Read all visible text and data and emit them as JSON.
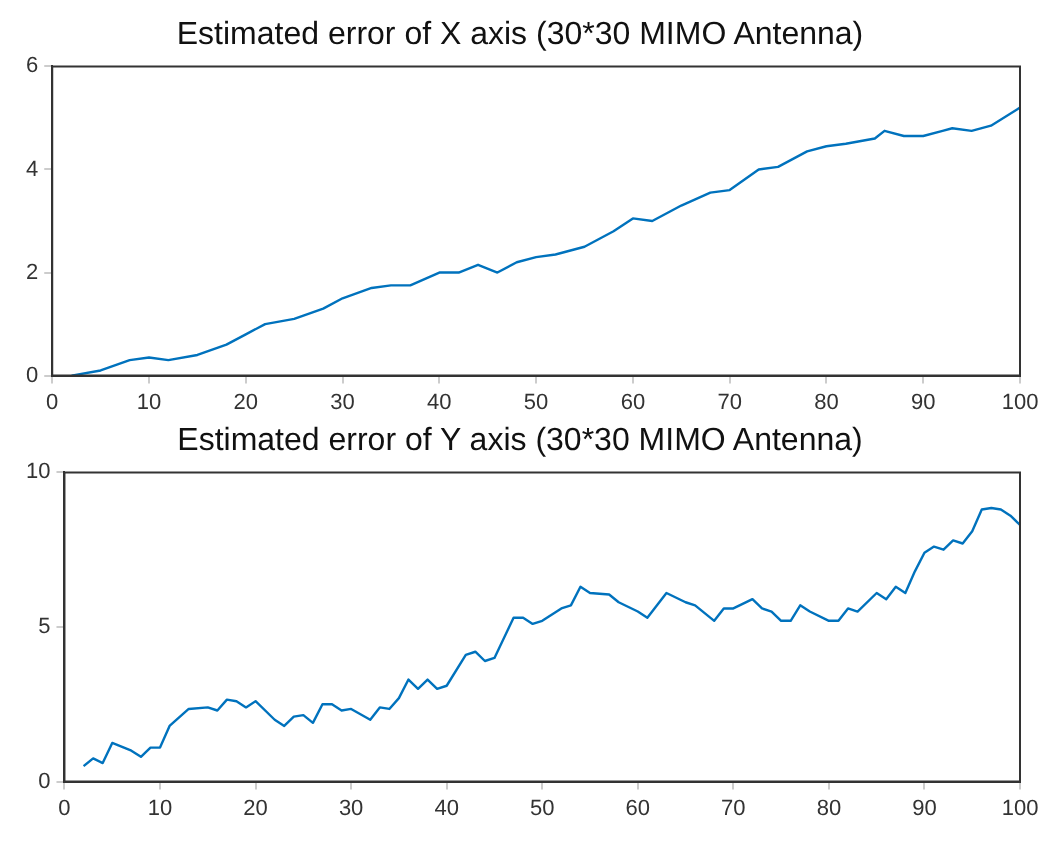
{
  "chart_data": [
    {
      "type": "line",
      "title": "Estimated error of X axis (30*30 MIMO Antenna)",
      "xlim": [
        0,
        100
      ],
      "xticks": [
        0,
        10,
        20,
        30,
        40,
        50,
        60,
        70,
        80,
        90,
        100
      ],
      "ylim": [
        0,
        6
      ],
      "yticks": [
        0,
        2,
        4,
        6
      ],
      "grid": false,
      "legend": false,
      "marker": "none",
      "line_style": "solid",
      "series": [
        {
          "color": "#0072bd",
          "x": [
            2,
            5,
            8,
            10,
            12,
            15,
            18,
            20,
            22,
            25,
            28,
            30,
            33,
            35,
            37,
            40,
            42,
            44,
            46,
            48,
            50,
            52,
            55,
            58,
            60,
            62,
            65,
            68,
            70,
            73,
            75,
            78,
            80,
            82,
            85,
            86,
            88,
            90,
            92,
            93,
            95,
            97,
            100
          ],
          "values": [
            0.0,
            0.1,
            0.3,
            0.35,
            0.3,
            0.4,
            0.6,
            0.8,
            1.0,
            1.1,
            1.3,
            1.5,
            1.7,
            1.75,
            1.75,
            2.0,
            2.0,
            2.15,
            2.0,
            2.2,
            2.3,
            2.35,
            2.5,
            2.8,
            3.05,
            3.0,
            3.3,
            3.55,
            3.6,
            4.0,
            4.05,
            4.35,
            4.45,
            4.5,
            4.6,
            4.75,
            4.65,
            4.65,
            4.75,
            4.8,
            4.75,
            4.85,
            5.2
          ]
        }
      ]
    },
    {
      "type": "line",
      "title": "Estimated error of Y axis (30*30 MIMO Antenna)",
      "xlim": [
        0,
        100
      ],
      "xticks": [
        0,
        10,
        20,
        30,
        40,
        50,
        60,
        70,
        80,
        90,
        100
      ],
      "ylim": [
        0,
        10
      ],
      "yticks": [
        0,
        5,
        10
      ],
      "grid": false,
      "legend": false,
      "marker": "none",
      "line_style": "solid",
      "series": [
        {
          "color": "#0072bd",
          "x": [
            2,
            3,
            4,
            5,
            7,
            8,
            9,
            10,
            11,
            13,
            15,
            16,
            17,
            18,
            19,
            20,
            22,
            23,
            24,
            25,
            26,
            27,
            28,
            29,
            30,
            32,
            33,
            34,
            35,
            36,
            37,
            38,
            39,
            40,
            42,
            43,
            44,
            45,
            47,
            48,
            49,
            50,
            52,
            53,
            54,
            55,
            57,
            58,
            60,
            61,
            63,
            65,
            66,
            68,
            69,
            70,
            72,
            73,
            74,
            75,
            76,
            77,
            78,
            80,
            81,
            82,
            83,
            85,
            86,
            87,
            88,
            89,
            90,
            91,
            92,
            93,
            94,
            95,
            96,
            97,
            98,
            99,
            100
          ],
          "values": [
            0.5,
            0.75,
            0.6,
            1.25,
            1.0,
            0.8,
            1.1,
            1.1,
            1.8,
            2.35,
            2.4,
            2.3,
            2.65,
            2.6,
            2.4,
            2.6,
            2.0,
            1.8,
            2.1,
            2.15,
            1.9,
            2.5,
            2.5,
            2.3,
            2.35,
            2.0,
            2.4,
            2.35,
            2.7,
            3.3,
            3.0,
            3.3,
            3.0,
            3.1,
            4.1,
            4.2,
            3.9,
            4.0,
            5.3,
            5.3,
            5.1,
            5.2,
            5.6,
            5.7,
            6.3,
            6.1,
            6.05,
            5.8,
            5.5,
            5.3,
            6.1,
            5.8,
            5.7,
            5.2,
            5.6,
            5.6,
            5.9,
            5.6,
            5.5,
            5.2,
            5.2,
            5.7,
            5.5,
            5.2,
            5.2,
            5.6,
            5.5,
            6.1,
            5.9,
            6.3,
            6.1,
            6.8,
            7.4,
            7.6,
            7.5,
            7.8,
            7.7,
            8.1,
            8.8,
            8.85,
            8.8,
            8.6,
            8.3
          ]
        }
      ]
    }
  ]
}
